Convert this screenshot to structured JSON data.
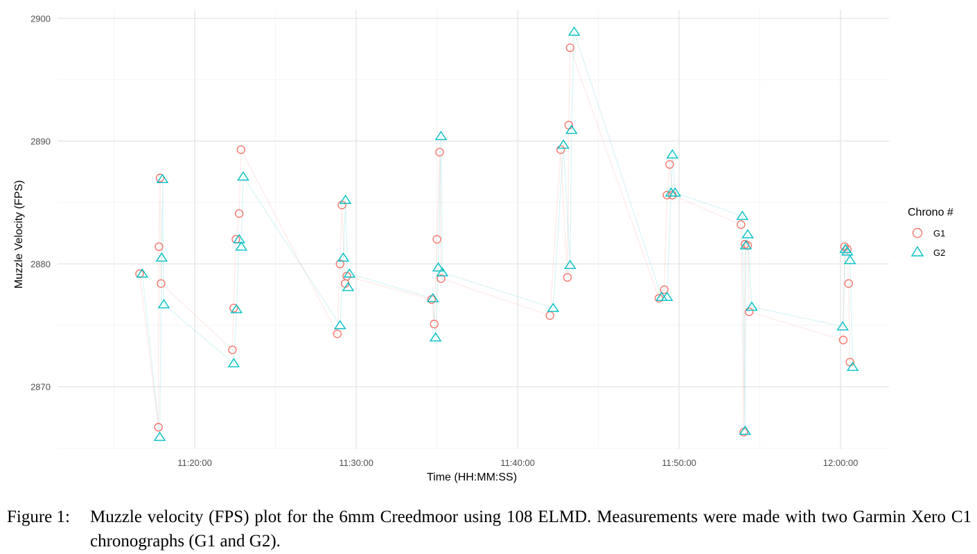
{
  "chart_data": {
    "type": "scatter",
    "xlabel": "Time (HH:MM:SS)",
    "ylabel": "Muzzle Velocity (FPS)",
    "x_ticks": [
      "11:20:00",
      "11:30:00",
      "11:40:00",
      "11:50:00",
      "12:00:00"
    ],
    "y_ticks": [
      2870,
      2880,
      2890,
      2900
    ],
    "xlim": [
      "11:11:30",
      "12:03:00"
    ],
    "ylim": [
      2864.9,
      2900.7
    ],
    "grid": true,
    "connecting_lines": true,
    "legend": {
      "title": "Chrono #",
      "placement": "right"
    },
    "series": [
      {
        "name": "G1",
        "marker": "circle",
        "color": "#F8766D",
        "points": [
          [
            "11:16:35",
            2879.2
          ],
          [
            "11:17:45",
            2866.7
          ],
          [
            "11:17:47",
            2881.4
          ],
          [
            "11:17:51",
            2887.0
          ],
          [
            "11:17:55",
            2878.4
          ],
          [
            "11:22:20",
            2873.0
          ],
          [
            "11:22:25",
            2876.4
          ],
          [
            "11:22:33",
            2882.0
          ],
          [
            "11:22:45",
            2884.1
          ],
          [
            "11:22:52",
            2889.3
          ],
          [
            "11:28:50",
            2874.3
          ],
          [
            "11:29:00",
            2880.0
          ],
          [
            "11:29:07",
            2884.8
          ],
          [
            "11:29:19",
            2878.4
          ],
          [
            "11:29:25",
            2879.0
          ],
          [
            "11:34:40",
            2877.1
          ],
          [
            "11:34:50",
            2875.1
          ],
          [
            "11:35:00",
            2882.0
          ],
          [
            "11:35:10",
            2889.1
          ],
          [
            "11:35:15",
            2878.8
          ],
          [
            "11:42:00",
            2875.8
          ],
          [
            "11:42:40",
            2889.3
          ],
          [
            "11:43:05",
            2878.9
          ],
          [
            "11:43:10",
            2891.3
          ],
          [
            "11:43:15",
            2897.6
          ],
          [
            "11:48:45",
            2877.2
          ],
          [
            "11:49:05",
            2877.9
          ],
          [
            "11:49:15",
            2885.6
          ],
          [
            "11:49:25",
            2888.1
          ],
          [
            "11:49:35",
            2885.6
          ],
          [
            "11:53:50",
            2883.2
          ],
          [
            "11:54:00",
            2866.3
          ],
          [
            "11:54:05",
            2881.6
          ],
          [
            "11:54:15",
            2881.5
          ],
          [
            "11:54:20",
            2876.1
          ],
          [
            "12:00:10",
            2873.8
          ],
          [
            "12:00:15",
            2881.4
          ],
          [
            "12:00:25",
            2881.2
          ],
          [
            "12:00:30",
            2878.4
          ],
          [
            "12:00:35",
            2872.0
          ]
        ]
      },
      {
        "name": "G2",
        "marker": "triangle",
        "color": "#00BFC4",
        "points": [
          [
            "11:16:45",
            2879.2
          ],
          [
            "11:17:50",
            2865.9
          ],
          [
            "11:17:57",
            2880.5
          ],
          [
            "11:18:00",
            2886.9
          ],
          [
            "11:18:05",
            2876.7
          ],
          [
            "11:22:25",
            2871.9
          ],
          [
            "11:22:35",
            2876.3
          ],
          [
            "11:22:45",
            2882.0
          ],
          [
            "11:22:53",
            2881.4
          ],
          [
            "11:23:00",
            2887.1
          ],
          [
            "11:29:00",
            2875.0
          ],
          [
            "11:29:12",
            2880.5
          ],
          [
            "11:29:20",
            2885.2
          ],
          [
            "11:29:30",
            2878.1
          ],
          [
            "11:29:35",
            2879.2
          ],
          [
            "11:34:45",
            2877.2
          ],
          [
            "11:34:55",
            2874.0
          ],
          [
            "11:35:05",
            2879.7
          ],
          [
            "11:35:15",
            2890.4
          ],
          [
            "11:35:20",
            2879.3
          ],
          [
            "11:42:12",
            2876.4
          ],
          [
            "11:42:50",
            2889.7
          ],
          [
            "11:43:15",
            2879.9
          ],
          [
            "11:43:20",
            2890.9
          ],
          [
            "11:43:30",
            2898.9
          ],
          [
            "11:48:55",
            2877.3
          ],
          [
            "11:49:15",
            2877.3
          ],
          [
            "11:49:30",
            2885.8
          ],
          [
            "11:49:35",
            2888.9
          ],
          [
            "11:49:45",
            2885.8
          ],
          [
            "11:53:55",
            2883.9
          ],
          [
            "11:54:05",
            2866.4
          ],
          [
            "11:54:08",
            2881.5
          ],
          [
            "11:54:15",
            2882.4
          ],
          [
            "11:54:30",
            2876.5
          ],
          [
            "12:00:08",
            2874.9
          ],
          [
            "12:00:18",
            2881.2
          ],
          [
            "12:00:25",
            2881.0
          ],
          [
            "12:00:35",
            2880.3
          ],
          [
            "12:00:45",
            2871.6
          ]
        ]
      }
    ]
  },
  "caption": {
    "number": "Figure 1:",
    "text": "Muzzle velocity (FPS) plot for the 6mm Creedmoor using 108 ELMD. Measurements were made with two Garmin Xero C1 chronographs (G1 and G2)."
  }
}
